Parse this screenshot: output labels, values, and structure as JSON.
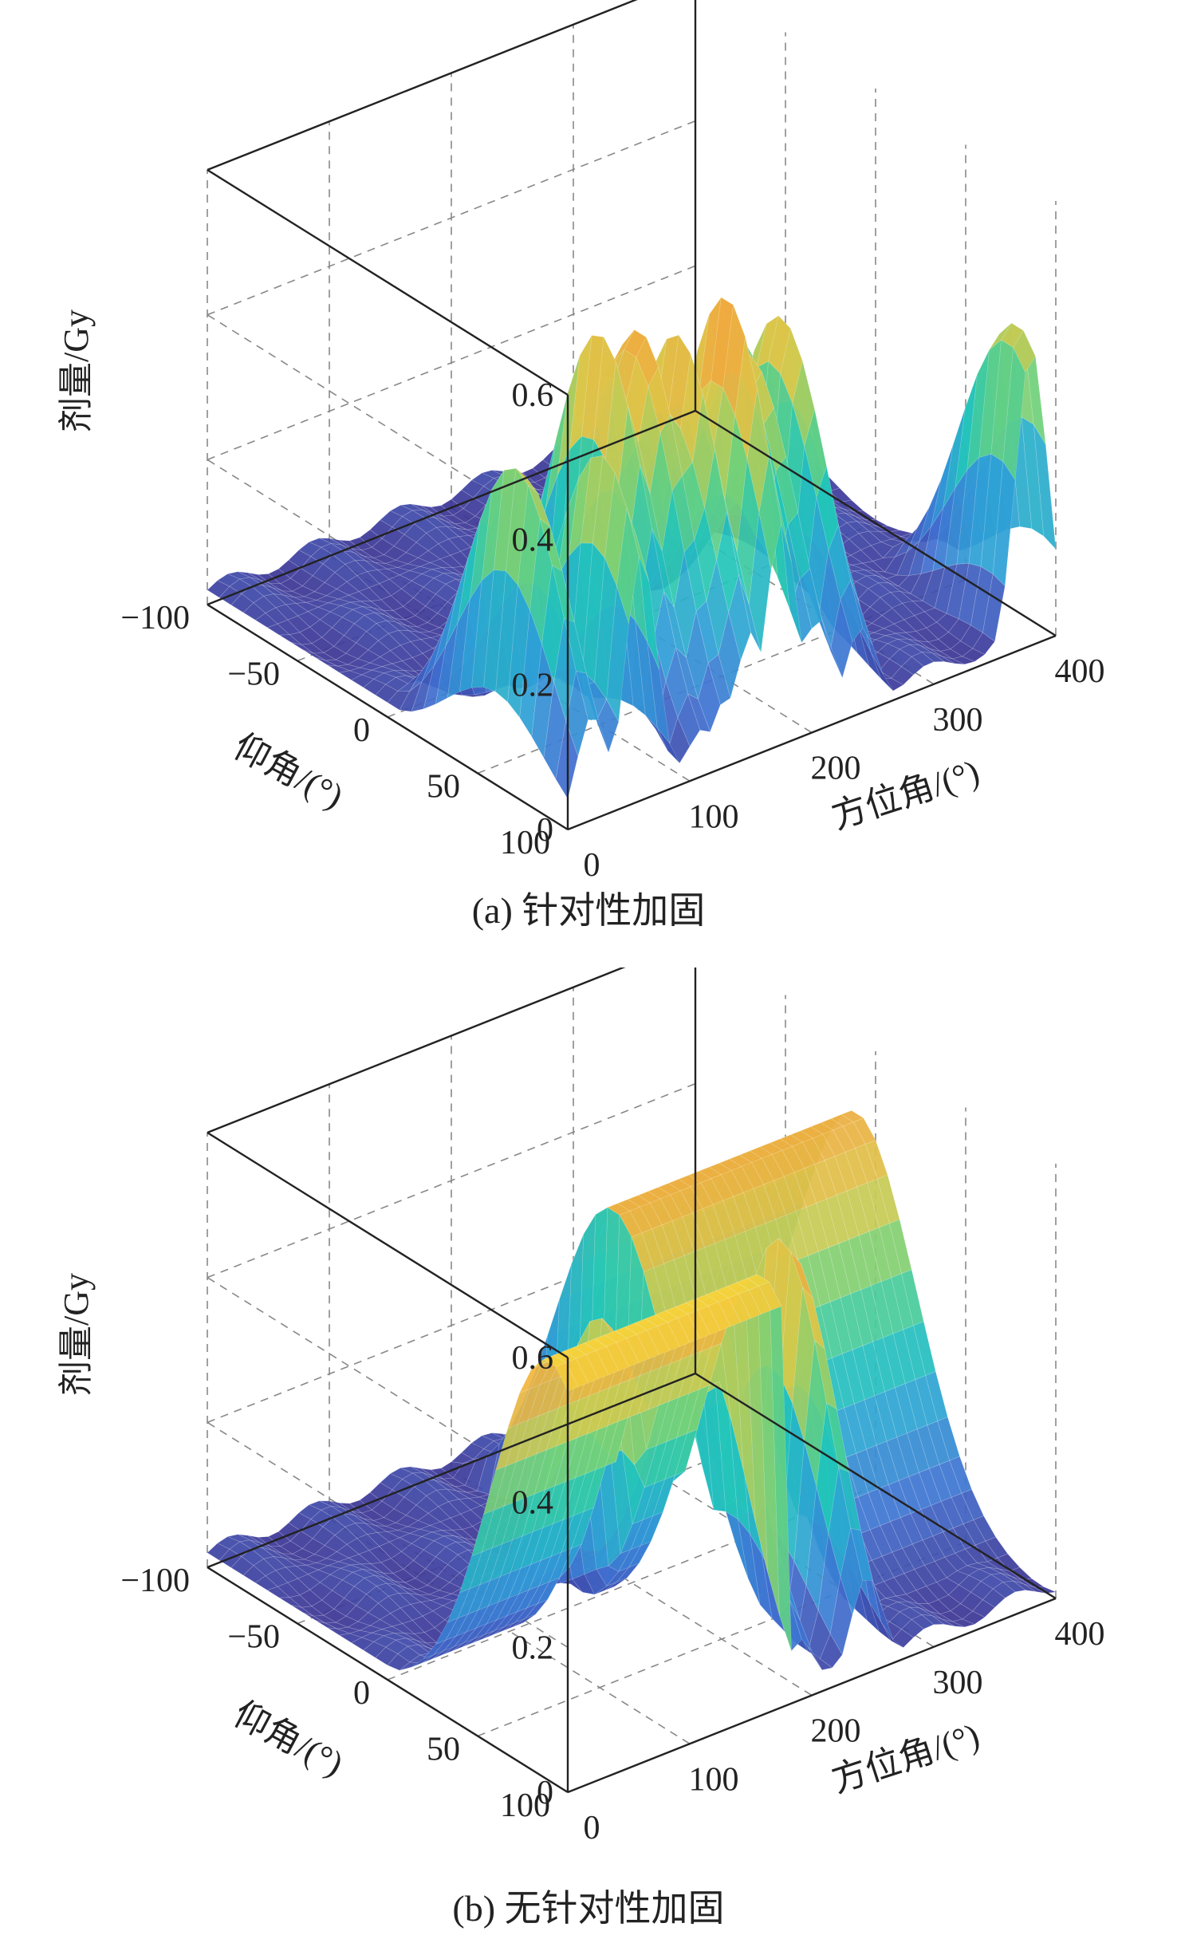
{
  "chart_data": [
    {
      "type": "surface3d",
      "caption": "(a) 针对性加固",
      "zlabel": "剂量/Gy",
      "ylabel": "仰角/(°)",
      "xlabel": "方位角/(°)",
      "zticks": [
        "0",
        "0.2",
        "0.4",
        "0.6"
      ],
      "yticks": [
        "100",
        "50",
        "0",
        "−50",
        "−100"
      ],
      "xticks": [
        "0",
        "100",
        "200",
        "300",
        "400"
      ],
      "xlim": [
        0,
        400
      ],
      "ylim": [
        -100,
        100
      ],
      "zlim": [
        0,
        0.6
      ],
      "colormap": [
        "#3b2f8f",
        "#3f6fd0",
        "#2e9fd6",
        "#22c6b8",
        "#6fd07a",
        "#d9c94a",
        "#f0a93e",
        "#f5e23a"
      ],
      "peaks": [
        {
          "x": 20,
          "y": 60,
          "z": 0.44
        },
        {
          "x": 60,
          "y": 80,
          "z": 0.45
        },
        {
          "x": 110,
          "y": 45,
          "z": 0.53
        },
        {
          "x": 130,
          "y": 50,
          "z": 0.54
        },
        {
          "x": 150,
          "y": 60,
          "z": 0.52
        },
        {
          "x": 175,
          "y": 70,
          "z": 0.57
        },
        {
          "x": 205,
          "y": 60,
          "z": 0.47
        },
        {
          "x": 240,
          "y": 55,
          "z": 0.48
        },
        {
          "x": 270,
          "y": 10,
          "z": 0.38
        },
        {
          "x": 380,
          "y": 90,
          "z": 0.44
        }
      ],
      "grid": true
    },
    {
      "type": "surface3d",
      "caption": "(b) 无针对性加固",
      "zlabel": "剂量/Gy",
      "ylabel": "仰角/(°)",
      "xlabel": "方位角/(°)",
      "zticks": [
        "0",
        "0.2",
        "0.4",
        "0.6"
      ],
      "yticks": [
        "100",
        "50",
        "0",
        "−50",
        "−100"
      ],
      "xticks": [
        "0",
        "100",
        "200",
        "300",
        "400"
      ],
      "xlim": [
        0,
        400
      ],
      "ylim": [
        -100,
        100
      ],
      "zlim": [
        0,
        0.6
      ],
      "colormap": [
        "#3b2f8f",
        "#3f6fd0",
        "#2e9fd6",
        "#22c6b8",
        "#6fd07a",
        "#d9c94a",
        "#f0a93e",
        "#f5e23a"
      ],
      "plateaus": [
        {
          "x_from": 0,
          "x_to": 180,
          "y": 90,
          "z": 0.58
        },
        {
          "x_from": 200,
          "x_to": 400,
          "y": -10,
          "z": 0.5
        }
      ],
      "peaks": [
        {
          "x": 120,
          "y": 40,
          "z": 0.5
        },
        {
          "x": 190,
          "y": 50,
          "z": 0.47
        },
        {
          "x": 245,
          "y": 55,
          "z": 0.55
        }
      ],
      "grid": true
    }
  ]
}
